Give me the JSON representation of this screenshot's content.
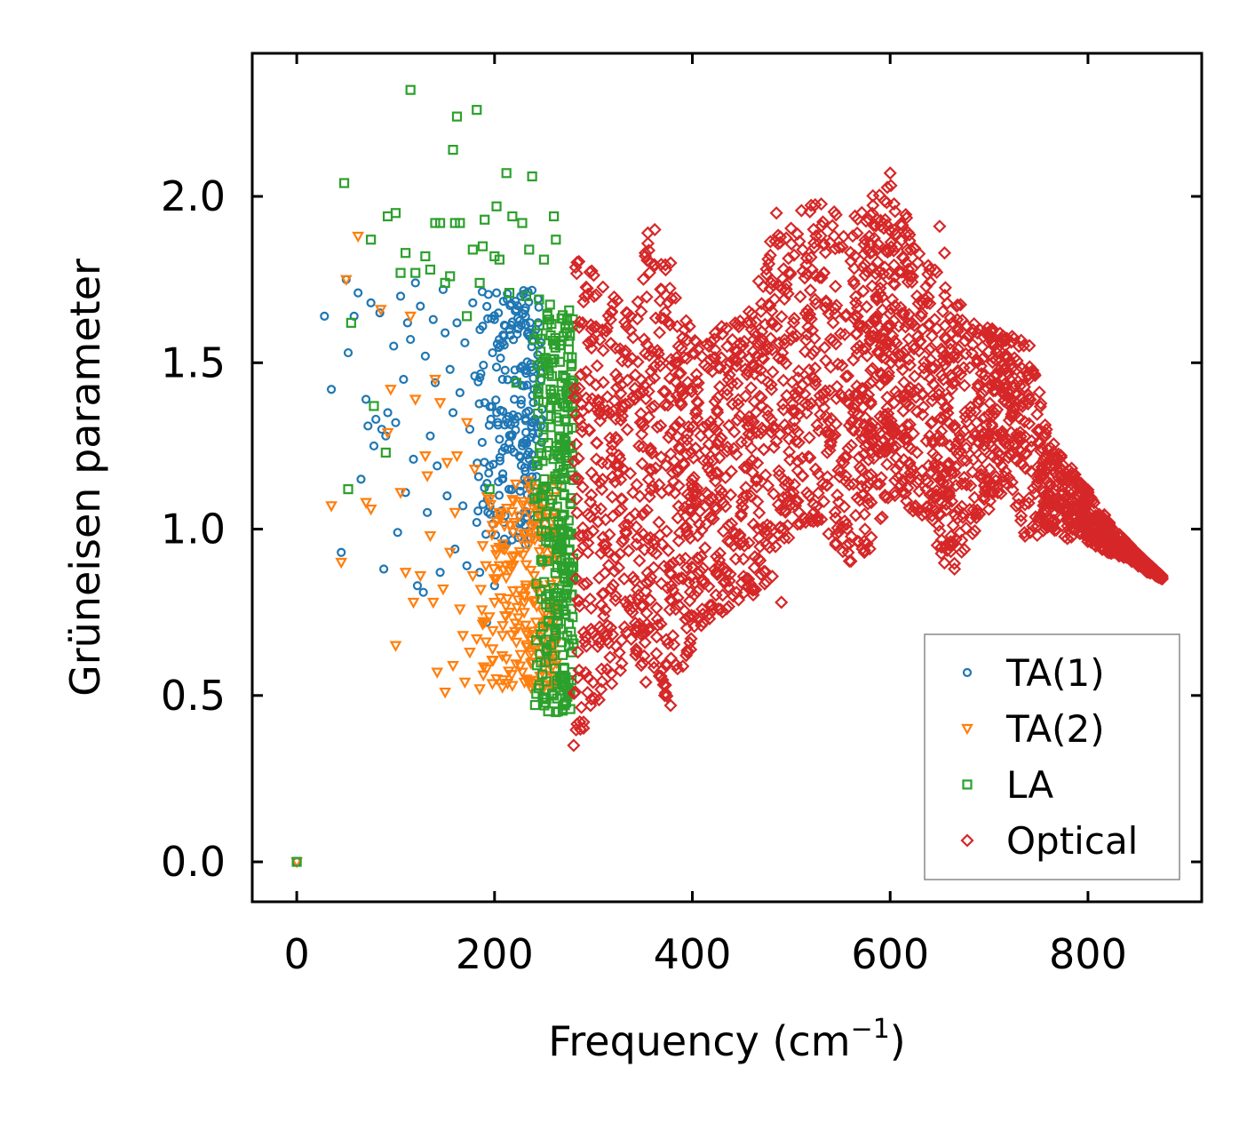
{
  "chart_data": {
    "type": "scatter",
    "xlabel": "Frequency (cm",
    "xlabel_sup": "−1",
    "xlabel_close": ")",
    "ylabel": "Grüneisen parameter",
    "xlim": [
      -45,
      915
    ],
    "ylim": [
      -0.12,
      2.43
    ],
    "xticks": [
      0,
      200,
      400,
      600,
      800
    ],
    "xtick_labels": [
      "0",
      "200",
      "400",
      "600",
      "800"
    ],
    "yticks": [
      0.0,
      0.5,
      1.0,
      1.5,
      2.0
    ],
    "ytick_labels": [
      "0.0",
      "0.5",
      "1.0",
      "1.5",
      "2.0"
    ],
    "legend_position": "lower-right",
    "series": [
      {
        "name": "TA(1)",
        "marker": "circle",
        "color": "#1f77b4",
        "points": [
          [
            0,
            0.0
          ],
          [
            28,
            1.64
          ],
          [
            35,
            1.42
          ],
          [
            45,
            0.93
          ],
          [
            50,
            1.75
          ],
          [
            52,
            1.53
          ],
          [
            58,
            1.64
          ],
          [
            62,
            1.71
          ],
          [
            65,
            1.15
          ],
          [
            70,
            1.39
          ],
          [
            72,
            1.31
          ],
          [
            75,
            1.68
          ],
          [
            78,
            1.25
          ],
          [
            80,
            1.33
          ],
          [
            84,
            1.65
          ],
          [
            86,
            1.3
          ],
          [
            88,
            0.88
          ],
          [
            90,
            1.28
          ],
          [
            92,
            1.35
          ],
          [
            98,
            1.55
          ],
          [
            100,
            1.32
          ],
          [
            102,
            0.99
          ],
          [
            105,
            1.7
          ],
          [
            108,
            1.45
          ],
          [
            110,
            1.11
          ],
          [
            112,
            1.62
          ],
          [
            115,
            1.57
          ],
          [
            118,
            1.21
          ],
          [
            120,
            1.74
          ],
          [
            122,
            0.83
          ],
          [
            125,
            1.67
          ],
          [
            128,
            0.81
          ],
          [
            130,
            1.52
          ],
          [
            132,
            1.05
          ],
          [
            135,
            1.28
          ],
          [
            138,
            1.63
          ],
          [
            140,
            1.44
          ],
          [
            142,
            1.19
          ],
          [
            145,
            0.87
          ],
          [
            148,
            1.72
          ],
          [
            150,
            1.59
          ],
          [
            152,
            1.1
          ],
          [
            155,
            1.48
          ],
          [
            158,
            1.35
          ],
          [
            160,
            0.94
          ],
          [
            162,
            1.62
          ],
          [
            165,
            1.41
          ],
          [
            168,
            1.07
          ],
          [
            170,
            1.56
          ],
          [
            172,
            0.89
          ],
          [
            175,
            1.3
          ],
          [
            178,
            1.68
          ],
          [
            180,
            1.46
          ],
          [
            182,
            1.02
          ],
          [
            185,
            0.87
          ],
          [
            188,
            1.61
          ],
          [
            190,
            1.38
          ],
          [
            192,
            0.72
          ],
          [
            195,
            1.19
          ],
          [
            198,
            1.53
          ],
          [
            200,
            0.83
          ],
          [
            202,
            1.71
          ],
          [
            205,
            1.27
          ],
          [
            208,
            1.45
          ],
          [
            210,
            0.97
          ],
          [
            212,
            1.33
          ],
          [
            215,
            1.6
          ],
          [
            218,
            1.12
          ],
          [
            220,
            1.39
          ],
          [
            222,
            1.66
          ],
          [
            225,
            1.22
          ],
          [
            228,
            1.49
          ],
          [
            230,
            1.05
          ],
          [
            232,
            1.35
          ],
          [
            235,
            1.58
          ],
          [
            238,
            1.14
          ],
          [
            240,
            1.42
          ],
          [
            242,
            1.27
          ],
          [
            245,
            1.5
          ],
          [
            248,
            1.36
          ]
        ],
        "cluster": {
          "x": [
            180,
            248
          ],
          "y": [
            0.95,
            1.72
          ],
          "count": 220
        }
      },
      {
        "name": "TA(2)",
        "marker": "triangle_down",
        "color": "#ff7f0e",
        "points": [
          [
            0,
            0.0
          ],
          [
            35,
            1.07
          ],
          [
            45,
            0.9
          ],
          [
            50,
            1.75
          ],
          [
            62,
            1.88
          ],
          [
            70,
            1.08
          ],
          [
            75,
            1.06
          ],
          [
            85,
            1.66
          ],
          [
            92,
            1.29
          ],
          [
            95,
            1.42
          ],
          [
            100,
            0.65
          ],
          [
            105,
            1.11
          ],
          [
            110,
            0.87
          ],
          [
            115,
            1.64
          ],
          [
            118,
            0.78
          ],
          [
            120,
            1.39
          ],
          [
            125,
            0.86
          ],
          [
            130,
            1.22
          ],
          [
            132,
            1.16
          ],
          [
            135,
            0.98
          ],
          [
            138,
            0.78
          ],
          [
            140,
            1.45
          ],
          [
            142,
            0.57
          ],
          [
            145,
            1.38
          ],
          [
            148,
            0.82
          ],
          [
            150,
            0.51
          ],
          [
            152,
            1.2
          ],
          [
            155,
            0.93
          ],
          [
            158,
            0.59
          ],
          [
            160,
            1.05
          ],
          [
            162,
            1.22
          ],
          [
            165,
            0.76
          ],
          [
            168,
            0.68
          ],
          [
            170,
            0.54
          ],
          [
            172,
            1.32
          ],
          [
            175,
            0.63
          ],
          [
            178,
            0.86
          ],
          [
            180,
            1.18
          ],
          [
            182,
            0.67
          ],
          [
            185,
            0.52
          ],
          [
            188,
            0.95
          ],
          [
            190,
            0.72
          ],
          [
            192,
            0.58
          ],
          [
            195,
            1.09
          ],
          [
            198,
            0.64
          ],
          [
            200,
            0.78
          ],
          [
            202,
            0.55
          ],
          [
            205,
            0.89
          ],
          [
            208,
            0.68
          ],
          [
            210,
            1.01
          ],
          [
            212,
            0.61
          ],
          [
            215,
            0.75
          ],
          [
            218,
            0.53
          ],
          [
            220,
            0.92
          ],
          [
            222,
            0.66
          ],
          [
            225,
            1.04
          ],
          [
            228,
            0.57
          ],
          [
            230,
            0.8
          ],
          [
            232,
            0.69
          ],
          [
            235,
            1.12
          ],
          [
            238,
            0.6
          ],
          [
            240,
            0.86
          ],
          [
            242,
            0.72
          ],
          [
            245,
            0.98
          ],
          [
            248,
            0.64
          ],
          [
            250,
            1.06
          ],
          [
            252,
            0.75
          ],
          [
            255,
            0.91
          ],
          [
            258,
            0.56
          ],
          [
            260,
            1.15
          ],
          [
            262,
            0.68
          ]
        ],
        "cluster": {
          "x": [
            185,
            265
          ],
          "y": [
            0.52,
            1.15
          ],
          "count": 200
        }
      },
      {
        "name": "LA",
        "marker": "square",
        "color": "#2ca02c",
        "points": [
          [
            0,
            0.0
          ],
          [
            48,
            2.04
          ],
          [
            52,
            1.12
          ],
          [
            55,
            1.62
          ],
          [
            75,
            1.87
          ],
          [
            78,
            1.37
          ],
          [
            90,
            1.23
          ],
          [
            92,
            1.94
          ],
          [
            100,
            1.95
          ],
          [
            105,
            1.77
          ],
          [
            110,
            1.83
          ],
          [
            115,
            2.32
          ],
          [
            120,
            1.77
          ],
          [
            130,
            1.82
          ],
          [
            135,
            1.78
          ],
          [
            140,
            1.92
          ],
          [
            145,
            1.92
          ],
          [
            150,
            1.74
          ],
          [
            155,
            1.76
          ],
          [
            158,
            2.14
          ],
          [
            160,
            1.92
          ],
          [
            162,
            2.24
          ],
          [
            165,
            1.92
          ],
          [
            172,
            1.64
          ],
          [
            178,
            1.84
          ],
          [
            182,
            2.26
          ],
          [
            185,
            1.74
          ],
          [
            188,
            1.85
          ],
          [
            190,
            1.93
          ],
          [
            195,
            1.12
          ],
          [
            200,
            1.82
          ],
          [
            202,
            1.97
          ],
          [
            205,
            1.81
          ],
          [
            212,
            2.07
          ],
          [
            215,
            1.71
          ],
          [
            218,
            1.94
          ],
          [
            222,
            1.44
          ],
          [
            228,
            1.92
          ],
          [
            232,
            1.7
          ],
          [
            235,
            1.84
          ],
          [
            238,
            2.06
          ],
          [
            240,
            1.57
          ],
          [
            245,
            1.69
          ],
          [
            248,
            1.5
          ],
          [
            250,
            1.81
          ],
          [
            258,
            1.46
          ],
          [
            260,
            1.94
          ],
          [
            262,
            1.87
          ],
          [
            265,
            1.22
          ],
          [
            268,
            0.66
          ],
          [
            270,
            1.15
          ],
          [
            262,
            0.45
          ],
          [
            260,
            0.5
          ],
          [
            265,
            0.82
          ],
          [
            272,
            1.33
          ]
        ],
        "cluster": {
          "x": [
            240,
            280
          ],
          "y": [
            0.45,
            1.68
          ],
          "count": 320
        }
      },
      {
        "name": "Optical",
        "marker": "diamond",
        "color": "#d62728",
        "envelope": [
          [
            280,
            0.37,
            1.82
          ],
          [
            300,
            0.42,
            1.78
          ],
          [
            320,
            0.52,
            1.7
          ],
          [
            340,
            0.58,
            1.66
          ],
          [
            355,
            0.52,
            1.88
          ],
          [
            370,
            0.46,
            1.82
          ],
          [
            385,
            0.55,
            1.68
          ],
          [
            400,
            0.64,
            1.62
          ],
          [
            420,
            0.7,
            1.6
          ],
          [
            440,
            0.78,
            1.62
          ],
          [
            460,
            0.8,
            1.7
          ],
          [
            480,
            0.82,
            1.88
          ],
          [
            500,
            0.98,
            1.92
          ],
          [
            520,
            1.02,
            2.0
          ],
          [
            540,
            0.93,
            1.96
          ],
          [
            560,
            0.9,
            1.95
          ],
          [
            575,
            0.92,
            1.98
          ],
          [
            590,
            0.98,
            2.03
          ],
          [
            605,
            1.1,
            2.07
          ],
          [
            620,
            1.05,
            1.92
          ],
          [
            640,
            1.02,
            1.82
          ],
          [
            655,
            0.88,
            1.74
          ],
          [
            670,
            0.9,
            1.7
          ],
          [
            690,
            1.0,
            1.62
          ],
          [
            705,
            1.08,
            1.6
          ],
          [
            720,
            1.12,
            1.6
          ],
          [
            740,
            0.93,
            1.57
          ],
          [
            760,
            1.0,
            1.28
          ],
          [
            780,
            0.97,
            1.2
          ],
          [
            800,
            0.96,
            1.12
          ],
          [
            820,
            0.93,
            1.03
          ],
          [
            840,
            0.91,
            0.96
          ],
          [
            860,
            0.87,
            0.9
          ],
          [
            875,
            0.85,
            0.86
          ]
        ],
        "count": 2600,
        "points": [
          [
            280,
            0.35
          ],
          [
            290,
            0.42
          ],
          [
            297,
            0.47
          ],
          [
            355,
            1.89
          ],
          [
            362,
            1.9
          ],
          [
            378,
            1.8
          ],
          [
            378,
            0.47
          ],
          [
            372,
            0.5
          ],
          [
            485,
            1.95
          ],
          [
            490,
            0.78
          ],
          [
            600,
            2.07
          ],
          [
            650,
            1.91
          ],
          [
            655,
            1.83
          ],
          [
            665,
            0.88
          ],
          [
            645,
            1.63
          ],
          [
            875,
            0.85
          ]
        ]
      }
    ]
  }
}
